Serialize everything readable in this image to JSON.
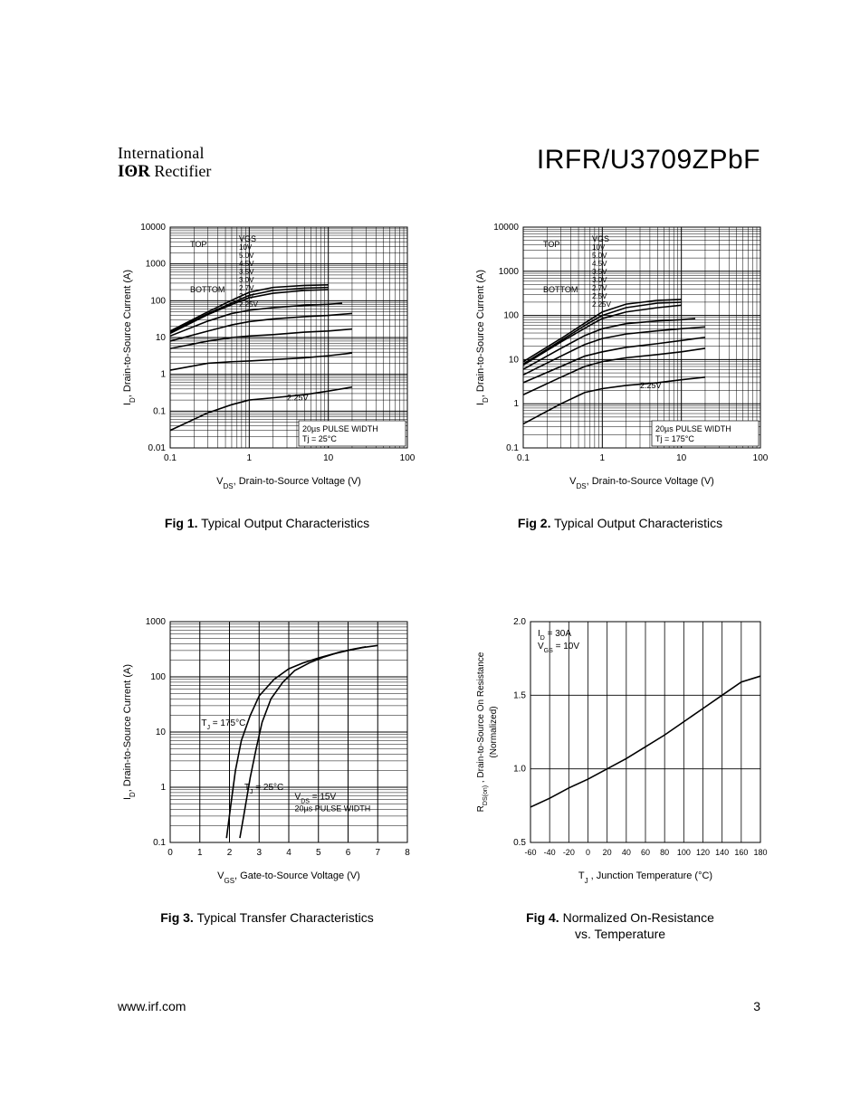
{
  "header": {
    "logo_line1": "International",
    "logo_line2_bold": "IʘR",
    "logo_line2_rest": " Rectifier",
    "part_number": "IRFR/U3709ZPbF"
  },
  "footer": {
    "url": "www.irf.com",
    "page": "3"
  },
  "colors": {
    "bg": "#ffffff",
    "ink": "#000000",
    "grid_major": "#000000",
    "grid_minor": "#000000"
  },
  "fig1": {
    "type": "loglog-line",
    "title_num": "Fig 1.",
    "title_text": "Typical Output Characteristics",
    "xlabel": "V_DS, Drain-to-Source Voltage (V)",
    "ylabel": "I_D, Drain-to-Source Current (A)",
    "xlim": [
      0.1,
      100
    ],
    "ylim": [
      0.01,
      10000
    ],
    "xticks": [
      0.1,
      1,
      10,
      100
    ],
    "yticks": [
      0.01,
      0.1,
      1,
      10,
      100,
      1000,
      10000
    ],
    "grid_color": "#000000",
    "line_color": "#000000",
    "line_width": 1.6,
    "annotations": {
      "top": "TOP",
      "bottom": "BOTTOM",
      "vgs_label": "VGS",
      "vgs_values": [
        "10V",
        "5.0V",
        "4.5V",
        "3.5V",
        "3.0V",
        "2.7V",
        "2.5V",
        "2.25V"
      ],
      "callout": "2.25V",
      "note1": "20µs PULSE WIDTH",
      "note2": "Tj = 25°C"
    },
    "series": [
      {
        "name": "10V",
        "pts": [
          [
            0.1,
            15
          ],
          [
            0.3,
            50
          ],
          [
            0.7,
            120
          ],
          [
            1,
            170
          ],
          [
            2,
            230
          ],
          [
            5,
            260
          ],
          [
            10,
            270
          ]
        ]
      },
      {
        "name": "5.0V",
        "pts": [
          [
            0.1,
            14
          ],
          [
            0.3,
            45
          ],
          [
            0.7,
            100
          ],
          [
            1,
            140
          ],
          [
            2,
            190
          ],
          [
            5,
            220
          ],
          [
            10,
            230
          ]
        ]
      },
      {
        "name": "4.5V",
        "pts": [
          [
            0.1,
            13
          ],
          [
            0.3,
            42
          ],
          [
            0.7,
            90
          ],
          [
            1,
            120
          ],
          [
            2,
            160
          ],
          [
            5,
            190
          ],
          [
            10,
            200
          ]
        ]
      },
      {
        "name": "3.5V",
        "pts": [
          [
            0.1,
            11
          ],
          [
            0.3,
            28
          ],
          [
            0.6,
            45
          ],
          [
            1,
            55
          ],
          [
            2,
            65
          ],
          [
            5,
            75
          ],
          [
            10,
            80
          ],
          [
            15,
            85
          ]
        ]
      },
      {
        "name": "3.0V",
        "pts": [
          [
            0.1,
            8
          ],
          [
            0.3,
            15
          ],
          [
            0.6,
            22
          ],
          [
            1,
            27
          ],
          [
            2,
            32
          ],
          [
            5,
            37
          ],
          [
            10,
            40
          ],
          [
            20,
            45
          ]
        ]
      },
      {
        "name": "2.7V",
        "pts": [
          [
            0.1,
            5
          ],
          [
            0.3,
            8
          ],
          [
            0.6,
            10
          ],
          [
            1,
            11
          ],
          [
            2,
            12
          ],
          [
            5,
            14
          ],
          [
            10,
            15
          ],
          [
            20,
            17
          ]
        ]
      },
      {
        "name": "2.5V",
        "pts": [
          [
            0.1,
            1.3
          ],
          [
            0.3,
            2
          ],
          [
            0.6,
            2.2
          ],
          [
            1,
            2.3
          ],
          [
            2,
            2.5
          ],
          [
            5,
            2.8
          ],
          [
            10,
            3.2
          ],
          [
            20,
            3.8
          ]
        ]
      },
      {
        "name": "2.25V",
        "pts": [
          [
            0.1,
            0.03
          ],
          [
            0.3,
            0.09
          ],
          [
            0.6,
            0.15
          ],
          [
            1,
            0.2
          ],
          [
            2,
            0.23
          ],
          [
            5,
            0.28
          ],
          [
            10,
            0.35
          ],
          [
            20,
            0.45
          ]
        ]
      }
    ]
  },
  "fig2": {
    "type": "loglog-line",
    "title_num": "Fig 2.",
    "title_text": "Typical Output Characteristics",
    "xlabel": "V_DS, Drain-to-Source Voltage (V)",
    "ylabel": "I_D, Drain-to-Source Current (A)",
    "xlim": [
      0.1,
      100
    ],
    "ylim": [
      0.1,
      10000
    ],
    "xticks": [
      0.1,
      1,
      10,
      100
    ],
    "yticks": [
      0.1,
      1,
      10,
      100,
      1000,
      10000
    ],
    "grid_color": "#000000",
    "line_color": "#000000",
    "line_width": 1.6,
    "annotations": {
      "top": "TOP",
      "bottom": "BOTTOM",
      "vgs_label": "VGS",
      "vgs_values": [
        "10V",
        "5.0V",
        "4.5V",
        "3.5V",
        "3.0V",
        "2.7V",
        "2.5V",
        "2.25V"
      ],
      "callout": "2.25V",
      "note1": "20µs PULSE WIDTH",
      "note2": "Tj = 175°C"
    },
    "series": [
      {
        "name": "10V",
        "pts": [
          [
            0.1,
            9
          ],
          [
            0.3,
            30
          ],
          [
            0.7,
            80
          ],
          [
            1,
            120
          ],
          [
            2,
            180
          ],
          [
            5,
            220
          ],
          [
            10,
            230
          ]
        ]
      },
      {
        "name": "5.0V",
        "pts": [
          [
            0.1,
            8
          ],
          [
            0.3,
            27
          ],
          [
            0.7,
            70
          ],
          [
            1,
            100
          ],
          [
            2,
            150
          ],
          [
            5,
            190
          ],
          [
            10,
            200
          ]
        ]
      },
      {
        "name": "4.5V",
        "pts": [
          [
            0.1,
            7.5
          ],
          [
            0.3,
            25
          ],
          [
            0.7,
            60
          ],
          [
            1,
            85
          ],
          [
            2,
            120
          ],
          [
            5,
            150
          ],
          [
            10,
            170
          ]
        ]
      },
      {
        "name": "3.5V",
        "pts": [
          [
            0.1,
            6
          ],
          [
            0.3,
            18
          ],
          [
            0.6,
            35
          ],
          [
            1,
            50
          ],
          [
            2,
            65
          ],
          [
            5,
            75
          ],
          [
            10,
            80
          ],
          [
            15,
            85
          ]
        ]
      },
      {
        "name": "3.0V",
        "pts": [
          [
            0.1,
            4.5
          ],
          [
            0.3,
            12
          ],
          [
            0.6,
            22
          ],
          [
            1,
            30
          ],
          [
            2,
            38
          ],
          [
            5,
            45
          ],
          [
            10,
            50
          ],
          [
            20,
            55
          ]
        ]
      },
      {
        "name": "2.7V",
        "pts": [
          [
            0.1,
            3
          ],
          [
            0.3,
            7
          ],
          [
            0.6,
            12
          ],
          [
            1,
            15
          ],
          [
            2,
            19
          ],
          [
            5,
            23
          ],
          [
            10,
            27
          ],
          [
            20,
            32
          ]
        ]
      },
      {
        "name": "2.5V",
        "pts": [
          [
            0.1,
            1.6
          ],
          [
            0.3,
            4
          ],
          [
            0.6,
            7
          ],
          [
            1,
            9
          ],
          [
            2,
            11
          ],
          [
            5,
            13
          ],
          [
            10,
            15
          ],
          [
            20,
            18
          ]
        ]
      },
      {
        "name": "2.25V",
        "pts": [
          [
            0.1,
            0.35
          ],
          [
            0.3,
            1
          ],
          [
            0.6,
            1.8
          ],
          [
            1,
            2.2
          ],
          [
            2,
            2.6
          ],
          [
            5,
            3
          ],
          [
            10,
            3.5
          ],
          [
            20,
            4
          ]
        ]
      }
    ]
  },
  "fig3": {
    "type": "semilogy-line",
    "title_num": "Fig 3.",
    "title_text": "Typical Transfer Characteristics",
    "xlabel": "V_GS, Gate-to-Source Voltage (V)",
    "ylabel": "I_D, Drain-to-Source Current  (A)",
    "xlim": [
      0,
      8
    ],
    "ylim": [
      0.1,
      1000
    ],
    "xticks": [
      0,
      1,
      2,
      3,
      4,
      5,
      6,
      7,
      8
    ],
    "yticks": [
      0.1,
      1,
      10,
      100,
      1000
    ],
    "grid_color": "#000000",
    "line_color": "#000000",
    "line_width": 1.6,
    "annotations": {
      "curve1": "T_J = 175°C",
      "curve2": "T_J = 25°C",
      "note1": "V_DS = 15V",
      "note2": "20µs PULSE WIDTH"
    },
    "series": [
      {
        "name": "175C",
        "pts": [
          [
            1.9,
            0.12
          ],
          [
            2.05,
            0.5
          ],
          [
            2.2,
            2
          ],
          [
            2.4,
            7
          ],
          [
            2.7,
            20
          ],
          [
            3,
            45
          ],
          [
            3.5,
            90
          ],
          [
            4,
            140
          ],
          [
            4.5,
            180
          ],
          [
            5,
            220
          ],
          [
            5.5,
            260
          ],
          [
            6,
            300
          ],
          [
            6.5,
            340
          ],
          [
            7,
            370
          ]
        ]
      },
      {
        "name": "25C",
        "pts": [
          [
            2.35,
            0.12
          ],
          [
            2.5,
            0.35
          ],
          [
            2.7,
            1.5
          ],
          [
            2.9,
            5
          ],
          [
            3.1,
            15
          ],
          [
            3.4,
            40
          ],
          [
            3.8,
            80
          ],
          [
            4.2,
            130
          ],
          [
            4.7,
            180
          ],
          [
            5.2,
            230
          ],
          [
            5.7,
            280
          ],
          [
            6.2,
            320
          ],
          [
            6.6,
            350
          ]
        ]
      }
    ]
  },
  "fig4": {
    "type": "linear-line",
    "title_num": "Fig 4.",
    "title_text": "Normalized On-Resistance\nvs. Temperature",
    "xlabel": "T_J , Junction Temperature (°C)",
    "ylabel": "R_DS(on) , Drain-to-Source On Resistance\n(Normalized)",
    "xlim": [
      -60,
      180
    ],
    "ylim": [
      0.5,
      2.0
    ],
    "xticks": [
      -60,
      -40,
      -20,
      0,
      20,
      40,
      60,
      80,
      100,
      120,
      140,
      160,
      180
    ],
    "yticks": [
      0.5,
      1.0,
      1.5,
      2.0
    ],
    "grid_color": "#000000",
    "line_color": "#000000",
    "line_width": 1.6,
    "annotations": {
      "note1": "I_D = 30A",
      "note2": "V_GS = 10V"
    },
    "series": [
      {
        "name": "rds",
        "pts": [
          [
            -60,
            0.74
          ],
          [
            -40,
            0.8
          ],
          [
            -20,
            0.87
          ],
          [
            0,
            0.93
          ],
          [
            20,
            1.0
          ],
          [
            40,
            1.07
          ],
          [
            60,
            1.15
          ],
          [
            80,
            1.23
          ],
          [
            100,
            1.32
          ],
          [
            120,
            1.41
          ],
          [
            140,
            1.5
          ],
          [
            160,
            1.59
          ],
          [
            180,
            1.63
          ]
        ]
      }
    ]
  }
}
